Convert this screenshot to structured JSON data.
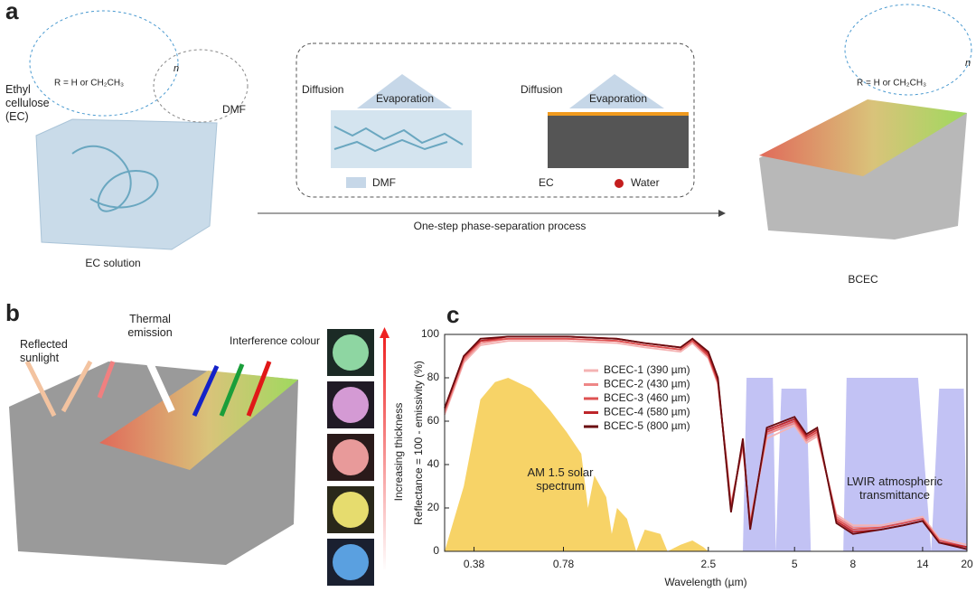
{
  "panel_a": {
    "label": "a",
    "ec_label": "Ethyl cellulose (EC)",
    "dmf_label": "DMF",
    "structure_note": "R = H or CH₂CH₃",
    "repeat": "n",
    "solution": "EC solution",
    "diffusion_left": "Diffusion",
    "evaporation_left": "Evaporation",
    "diffusion_right": "Diffusion",
    "evaporation_right": "Evaporation",
    "legend_dmf": "DMF",
    "legend_ec": "EC",
    "legend_water": "Water",
    "process": "One-step phase-separation process",
    "product_note": "R = H or CH₂CH₃",
    "product_repeat": "n",
    "product": "BCEC"
  },
  "panel_b": {
    "label": "b",
    "reflected": "Reflected sunlight",
    "thermal": "Thermal emission",
    "interference": "Interference colour",
    "thickness": "Increasing thickness"
  },
  "panel_c": {
    "label": "c"
  },
  "chart_data": {
    "type": "line",
    "xscale": "log",
    "xlabel": "Wavelength (µm)",
    "ylabel": "Reflectance = 100 - emissivity (%)",
    "xlim": [
      0.3,
      20
    ],
    "ylim": [
      0,
      100
    ],
    "xticks": [
      0.38,
      0.78,
      2.5,
      5,
      8,
      14,
      20
    ],
    "yticks": [
      0,
      20,
      40,
      60,
      80,
      100
    ],
    "legend": "upper center",
    "series": [
      {
        "name": "AM 1.5 solar spectrum",
        "type": "area",
        "color": "#f6cb4c",
        "x": [
          0.3,
          0.35,
          0.4,
          0.45,
          0.5,
          0.6,
          0.7,
          0.8,
          0.9,
          0.95,
          1.0,
          1.1,
          1.15,
          1.2,
          1.3,
          1.4,
          1.5,
          1.7,
          1.8,
          2.0,
          2.2,
          2.4,
          2.5
        ],
        "values": [
          0,
          30,
          70,
          78,
          80,
          75,
          65,
          55,
          45,
          20,
          35,
          25,
          8,
          20,
          15,
          0,
          10,
          8,
          0,
          3,
          5,
          2,
          0
        ]
      },
      {
        "name": "LWIR atmospheric transmittance",
        "type": "area",
        "color": "#b7b7f2",
        "x": [
          3.3,
          3.4,
          4.2,
          4.3,
          4.5,
          5.5,
          5.7,
          7.4,
          7.6,
          13.5,
          15,
          16,
          19.5,
          20
        ],
        "values": [
          0,
          80,
          80,
          0,
          75,
          75,
          0,
          0,
          80,
          80,
          0,
          75,
          75,
          0
        ]
      },
      {
        "name": "BCEC-1 (390 µm)",
        "color": "#f4b3b3",
        "x": [
          0.3,
          0.35,
          0.4,
          0.5,
          0.8,
          1.2,
          1.5,
          2.0,
          2.2,
          2.5,
          2.7,
          2.9,
          3.0,
          3.3,
          3.5,
          4.0,
          5.0,
          5.5,
          6.0,
          7.0,
          8.0,
          10,
          12,
          14,
          16,
          20
        ],
        "values": [
          63,
          87,
          95,
          97,
          97,
          96,
          94,
          92,
          96,
          89,
          77,
          41,
          22,
          48,
          14,
          52,
          58,
          50,
          53,
          17,
          12,
          12,
          14,
          16,
          6,
          3
        ]
      },
      {
        "name": "BCEC-2 (430 µm)",
        "color": "#ee8787",
        "x": [
          0.3,
          0.35,
          0.4,
          0.5,
          0.8,
          1.2,
          1.5,
          2.0,
          2.2,
          2.5,
          2.7,
          2.9,
          3.0,
          3.3,
          3.5,
          4.0,
          5.0,
          5.5,
          6.0,
          7.0,
          8.0,
          10,
          12,
          14,
          16,
          20
        ],
        "values": [
          64,
          88,
          96,
          98,
          98,
          97,
          95,
          93,
          97,
          90,
          78,
          40,
          21,
          49,
          13,
          54,
          59,
          51,
          54,
          16,
          11,
          11,
          13,
          15,
          5,
          2
        ]
      },
      {
        "name": "BCEC-3 (460 µm)",
        "color": "#de5252",
        "x": [
          0.3,
          0.35,
          0.4,
          0.5,
          0.8,
          1.2,
          1.5,
          2.0,
          2.2,
          2.5,
          2.7,
          2.9,
          3.0,
          3.3,
          3.5,
          4.0,
          5.0,
          5.5,
          6.0,
          7.0,
          8.0,
          10,
          12,
          14,
          16,
          20
        ],
        "values": [
          65,
          89,
          97,
          98,
          98,
          97,
          95,
          93,
          97,
          90,
          78,
          40,
          20,
          50,
          12,
          55,
          60,
          52,
          55,
          15,
          10,
          11,
          13,
          15,
          5,
          2
        ]
      },
      {
        "name": "BCEC-4 (580 µm)",
        "color": "#bd262a",
        "x": [
          0.3,
          0.35,
          0.4,
          0.5,
          0.8,
          1.2,
          1.5,
          2.0,
          2.2,
          2.5,
          2.7,
          2.9,
          3.0,
          3.3,
          3.5,
          4.0,
          5.0,
          5.5,
          6.0,
          7.0,
          8.0,
          10,
          12,
          14,
          16,
          20
        ],
        "values": [
          66,
          90,
          97,
          99,
          99,
          98,
          96,
          94,
          98,
          91,
          79,
          39,
          19,
          51,
          11,
          56,
          61,
          53,
          56,
          14,
          9,
          10,
          12,
          14,
          4,
          2
        ]
      },
      {
        "name": "BCEC-5 (800 µm)",
        "color": "#6a0c10",
        "x": [
          0.3,
          0.35,
          0.4,
          0.5,
          0.8,
          1.2,
          1.5,
          2.0,
          2.2,
          2.5,
          2.7,
          2.9,
          3.0,
          3.3,
          3.5,
          4.0,
          5.0,
          5.5,
          6.0,
          7.0,
          8.0,
          10,
          12,
          14,
          16,
          20
        ],
        "values": [
          66,
          90,
          98,
          99,
          99,
          98,
          96,
          94,
          98,
          92,
          80,
          38,
          18,
          52,
          10,
          57,
          62,
          54,
          57,
          13,
          8,
          10,
          12,
          14,
          4,
          1
        ]
      }
    ]
  }
}
